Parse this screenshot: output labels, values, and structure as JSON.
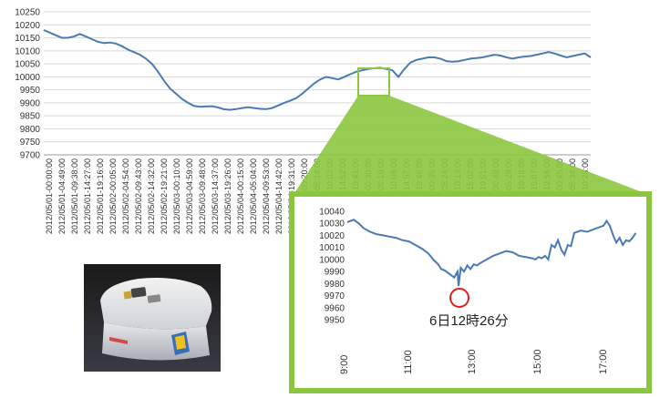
{
  "chart_data": [
    {
      "type": "line",
      "title": "",
      "xlabel": "",
      "ylabel": "",
      "ylim": [
        9700,
        10250
      ],
      "y_ticks": [
        10250,
        10200,
        10150,
        10100,
        10050,
        10000,
        9950,
        9900,
        9850,
        9800,
        9750,
        9700
      ],
      "x_tick_labels": [
        "2012/05/01-00:00:00",
        "2012/05/01-04:49:00",
        "2012/05/01-09:38:00",
        "2012/05/01-14:27:00",
        "2012/05/01-19:16:00",
        "2012/05/02-00:05:00",
        "2012/05/02-04:54:00",
        "2012/05/02-09:43:00",
        "2012/05/02-14:32:00",
        "2012/05/02-19:21:00",
        "2012/05/03-00:10:00",
        "2012/05/03-04:59:00",
        "2012/05/03-09:48:00",
        "2012/05/03-14:37:00",
        "2012/05/03-19:26:00",
        "2012/05/04-00:15:00",
        "2012/05/04-05:04:00",
        "2012/05/04-09:53:00",
        "2012/05/04-14:42:00",
        "2012/05/04-19:31:00",
        "2012/05/05-00:20:00",
        "2012/05/05-05:14:00",
        "2012/05/05-10:03:00",
        "2012/05/05-14:52:00",
        "2012/05/05-19:41:00",
        "2012/05/06-00:30:00",
        "2012/05/06-05:19:00",
        "2012/05/06-10:08:00",
        "2012/05/06-14:57:00",
        "2012/05/06-19:46:00",
        "2012/05/07-00:35:00",
        "2012/05/07-05:24:00",
        "2012/05/07-10:13:00",
        "2012/05/07-15:02:00",
        "2012/05/07-19:51:00",
        "2012/05/08-00:40:00",
        "2012/05/08-05:29:00",
        "2012/05/08-10:18:00",
        "2012/05/08-15:07:00",
        "2012/05/08-19:56:00",
        "2012/05/09-00:45:00",
        "2012/05/09-05:34:00",
        "2012/05/09-10:23:00"
      ],
      "visible_tick_text": [
        "2012/05/01-00:00:00",
        "2012/05/01-04:49:00",
        "2012/05/01-09:38:00",
        "2012/05/01-14:27:00",
        "2012/05/01-19:16:00",
        "2012/05/02-00:05:00",
        "2012/05/02-04:54:00",
        "2012/05/02-09:43:00",
        "2012/05/02-14:32:00",
        "2012/05/02-19:21:00",
        "2012/05/03-00:10:00",
        "2012/05/03-04:59:00",
        "2012/05/03-09:48:00",
        "2012/05/03-14:37:00",
        "2012/05/03-19:26:00",
        "2012/05/04-00:15:00",
        "2012/05/04-05:04:00",
        "2012/05/04-09:53:00",
        "2012/05/04-14:42:00",
        "2012/05/04-19:31:00",
        "2012/05/05-00:20:00",
        "05:14:00",
        "10:03:00",
        "14:52:00",
        "19:41:00",
        "00:30:00",
        "05:19:00",
        "10:08:00",
        "14:57:00",
        "19:46:00",
        "00:35:00",
        "05:24:00",
        "10:13:00",
        "15:02:00",
        "19:51:00",
        "00:40:00",
        "05:29:00",
        "10:18:00",
        "15:07:00",
        "19:56:00",
        "00:45:00",
        "05:34:00",
        "10:23:00"
      ],
      "series": [
        {
          "values": [
            10180,
            10170,
            10160,
            10150,
            10150,
            10155,
            10165,
            10155,
            10145,
            10135,
            10130,
            10132,
            10128,
            10118,
            10105,
            10095,
            10085,
            10070,
            10050,
            10020,
            9985,
            9955,
            9935,
            9915,
            9900,
            9888,
            9885,
            9886,
            9887,
            9882,
            9875,
            9873,
            9876,
            9880,
            9883,
            9880,
            9877,
            9876,
            9880,
            9890,
            9900,
            9908,
            9918,
            9935,
            9955,
            9975,
            9990,
            10000,
            9995,
            9990,
            10000,
            10010,
            10020,
            10025,
            10030,
            10033,
            10035,
            10030,
            10025,
            10000,
            10030,
            10055,
            10065,
            10070,
            10075,
            10075,
            10070,
            10060,
            10058,
            10060,
            10065,
            10070,
            10072,
            10075,
            10080,
            10085,
            10082,
            10075,
            10070,
            10075,
            10078,
            10080,
            10085,
            10090,
            10095,
            10090,
            10082,
            10075,
            10080,
            10085,
            10090,
            10075
          ]
        }
      ],
      "color": "#4a7ab5"
    },
    {
      "type": "line",
      "title": "",
      "xlabel": "",
      "ylabel": "",
      "ylim": [
        9950,
        10040
      ],
      "y_ticks": [
        10040,
        10030,
        10020,
        10010,
        10000,
        9990,
        9980,
        9970,
        9960,
        9950
      ],
      "x_ticks": [
        "9:00",
        "11:00",
        "13:00",
        "15:00",
        "17:00"
      ],
      "x_range_hours": [
        9,
        18
      ],
      "series": [
        {
          "x_hours": [
            9.0,
            9.1,
            9.2,
            9.35,
            9.5,
            9.7,
            9.9,
            10.1,
            10.3,
            10.5,
            10.7,
            10.9,
            11.1,
            11.3,
            11.5,
            11.65,
            11.8,
            11.9,
            12.0,
            12.1,
            12.2,
            12.3,
            12.4,
            12.43,
            12.5,
            12.6,
            12.7,
            12.8,
            12.9,
            13.0,
            13.1,
            13.3,
            13.5,
            13.7,
            13.9,
            14.1,
            14.3,
            14.5,
            14.7,
            14.8,
            14.9,
            15.0,
            15.1,
            15.2,
            15.3,
            15.4,
            15.5,
            15.6,
            15.7,
            15.8,
            15.9,
            16.0,
            16.2,
            16.4,
            16.6,
            16.8,
            16.9,
            17.0,
            17.1,
            17.2,
            17.3,
            17.4,
            17.5,
            17.6,
            17.7,
            17.8,
            17.9
          ],
          "values": [
            10031,
            10032,
            10033,
            10030,
            10026,
            10023,
            10021,
            10020,
            10019,
            10018,
            10016,
            10015,
            10012,
            10009,
            10005,
            10000,
            9996,
            9992,
            9991,
            9989,
            9987,
            9985,
            9990,
            9978,
            9993,
            9990,
            9995,
            9992,
            9996,
            9995,
            9997,
            10000,
            10003,
            10005,
            10007,
            10006,
            10003,
            10002,
            10001,
            10000,
            10002,
            10001,
            10003,
            10000,
            10012,
            10010,
            10016,
            10008,
            10004,
            10012,
            10011,
            10022,
            10024,
            10023,
            10025,
            10027,
            10028,
            10032,
            10028,
            10020,
            10014,
            10018,
            10012,
            10016,
            10015,
            10018,
            10022
          ]
        }
      ],
      "color": "#4a7ab5"
    }
  ],
  "annotation": {
    "label": "6日12時26分"
  }
}
